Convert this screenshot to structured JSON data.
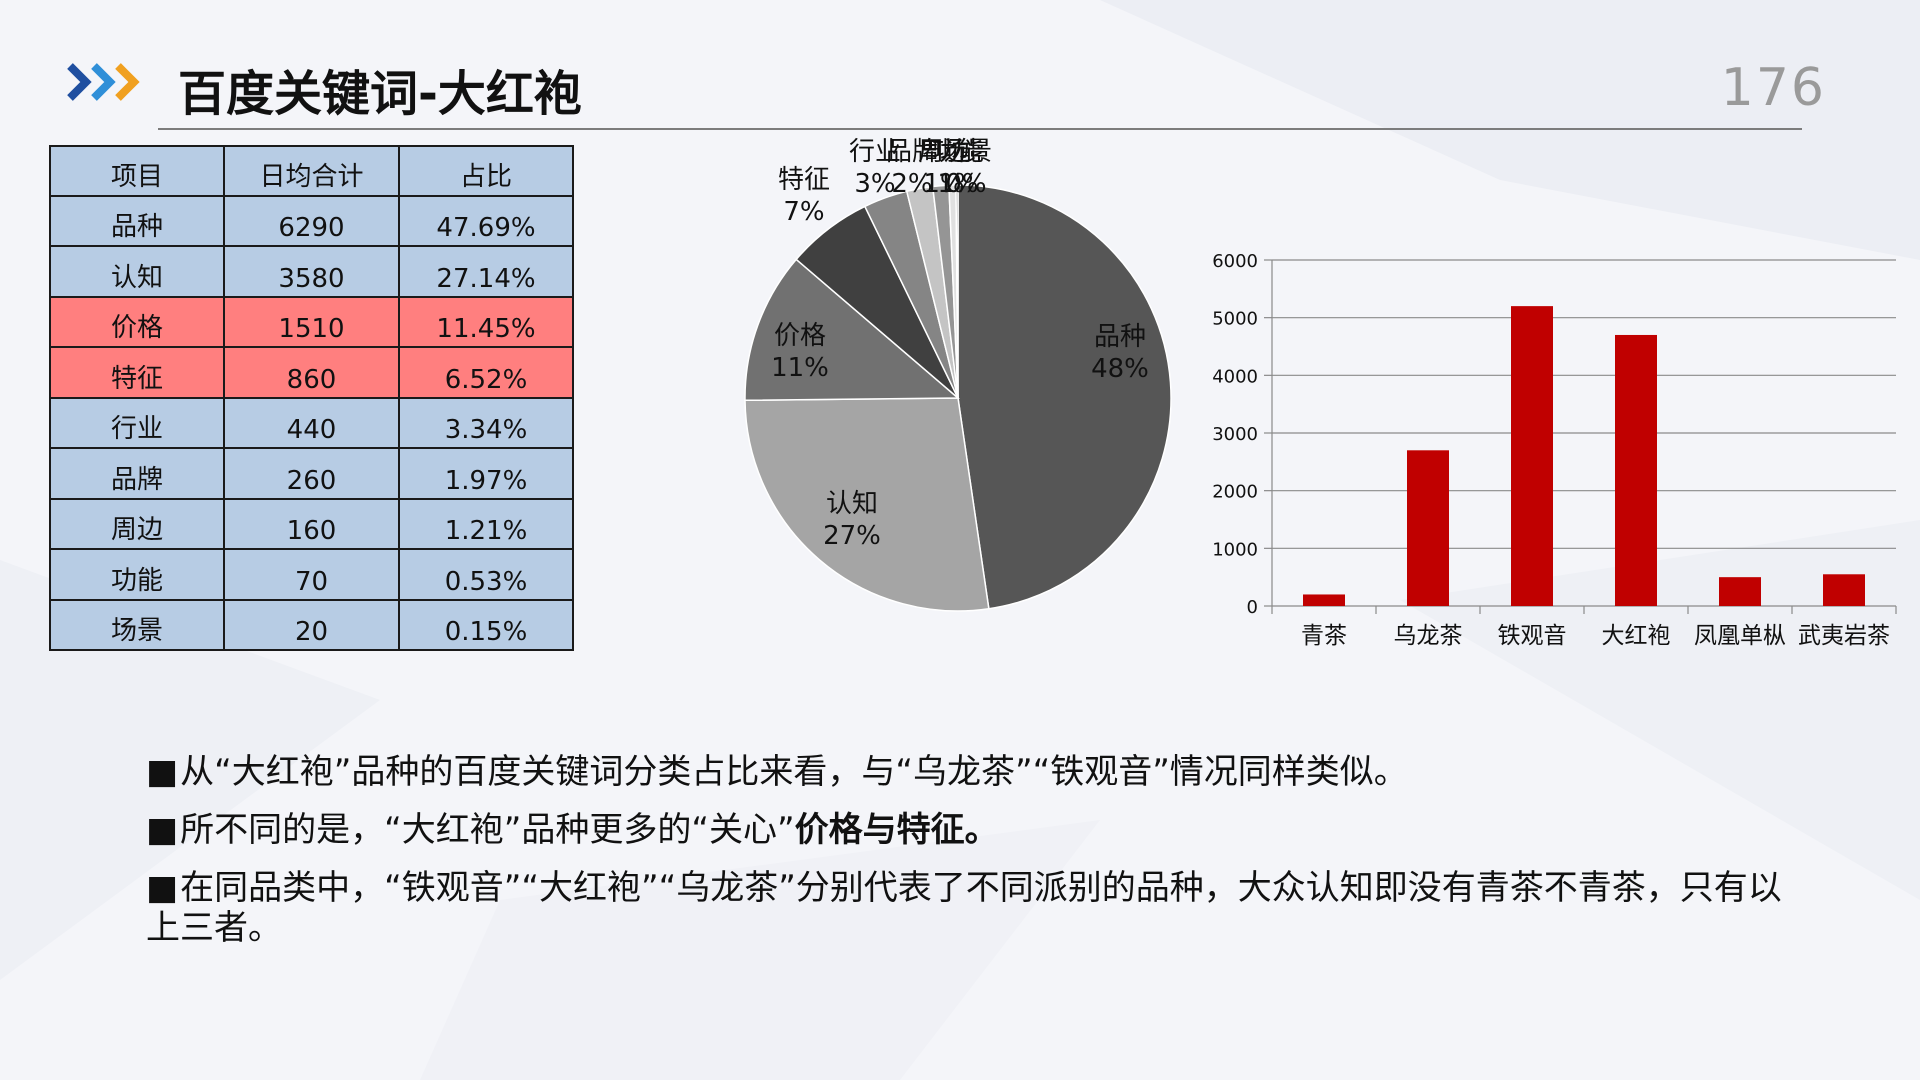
{
  "slide": {
    "title": "百度关键词-大红袍",
    "page_number": "176"
  },
  "table": {
    "headers": [
      "项目",
      "日均合计",
      "占比"
    ],
    "rows": [
      {
        "item": "品种",
        "daily_total": "6290",
        "share": "47.69%",
        "highlight": false
      },
      {
        "item": "认知",
        "daily_total": "3580",
        "share": "27.14%",
        "highlight": false
      },
      {
        "item": "价格",
        "daily_total": "1510",
        "share": "11.45%",
        "highlight": true
      },
      {
        "item": "特征",
        "daily_total": "860",
        "share": "6.52%",
        "highlight": true
      },
      {
        "item": "行业",
        "daily_total": "440",
        "share": "3.34%",
        "highlight": false
      },
      {
        "item": "品牌",
        "daily_total": "260",
        "share": "1.97%",
        "highlight": false
      },
      {
        "item": "周边",
        "daily_total": "160",
        "share": "1.21%",
        "highlight": false
      },
      {
        "item": "功能",
        "daily_total": "70",
        "share": "0.53%",
        "highlight": false
      },
      {
        "item": "场景",
        "daily_total": "20",
        "share": "0.15%",
        "highlight": false
      }
    ],
    "colors": {
      "normal": "#b7cce4",
      "highlight": "#ff7f7f"
    }
  },
  "chart_data": [
    {
      "type": "pie",
      "labels": [
        "品种",
        "认知",
        "价格",
        "特征",
        "行业",
        "品牌",
        "周边",
        "功能",
        "场景"
      ],
      "values": [
        6290,
        3580,
        1510,
        860,
        440,
        260,
        160,
        70,
        20
      ],
      "percent_labels": [
        "48%",
        "27%",
        "11%",
        "7%",
        "3%",
        "2%",
        "1%",
        "1%",
        "0%"
      ],
      "colors": [
        "#565656",
        "#a5a5a5",
        "#717171",
        "#404040",
        "#858585",
        "#c4c4c4",
        "#959595",
        "#e0e0e0",
        "#7a7a7a"
      ]
    },
    {
      "type": "bar",
      "categories": [
        "青茶",
        "乌龙茶",
        "铁观音",
        "大红袍",
        "凤凰单枞",
        "武夷岩茶"
      ],
      "values": [
        200,
        2700,
        5200,
        4700,
        500,
        550
      ],
      "ylim": [
        0,
        6000
      ],
      "yticks": [
        "0",
        "1000",
        "2000",
        "3000",
        "4000",
        "5000",
        "6000"
      ],
      "grid": true,
      "bar_color": "#c00000"
    }
  ],
  "bullets": [
    {
      "mark": "■",
      "text": "从“大红袍”品种的百度关键词分类占比来看，与“乌龙茶”“铁观音”情况同样类似。"
    },
    {
      "mark": "■",
      "text": "所不同的是，“大红袍”品种更多的“关心”",
      "bold1": "价格",
      "mid": "与",
      "bold2": "特征",
      "end": "。"
    },
    {
      "mark": "■",
      "text": "在同品类中，“铁观音”“大红袍”“乌龙茶”分别代表了不同派别的品种，大众认知即没有青茶不青茶，只有以上三者。"
    }
  ]
}
